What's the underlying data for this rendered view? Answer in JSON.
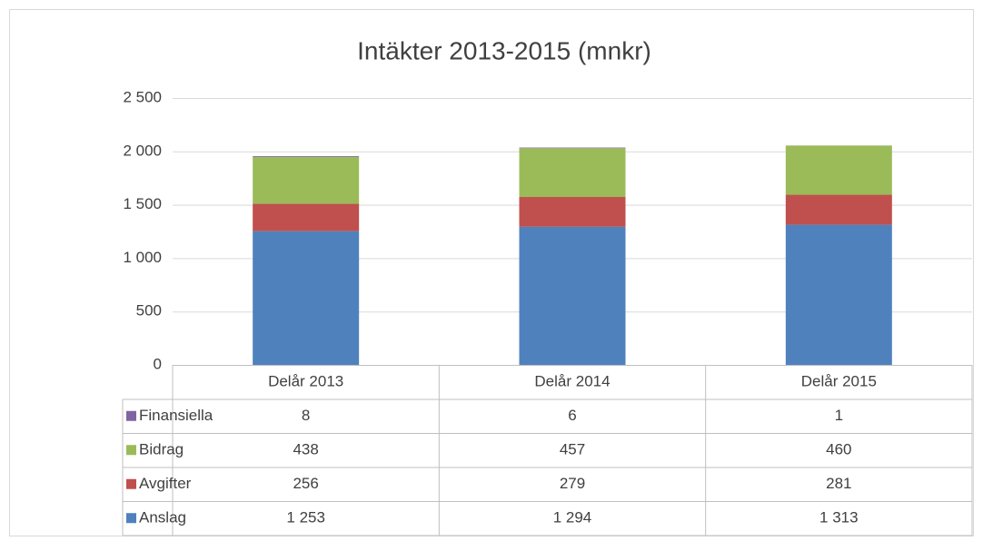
{
  "chart_data": {
    "type": "bar",
    "stacked": true,
    "title": "Intäkter 2013-2015 (mnkr)",
    "categories": [
      "Delår 2013",
      "Delår 2014",
      "Delår 2015"
    ],
    "series": [
      {
        "name": "Anslag",
        "color": "#4f81bd",
        "values": [
          1253,
          1294,
          1313
        ],
        "value_labels": [
          "1 253",
          "1 294",
          "1 313"
        ]
      },
      {
        "name": "Avgifter",
        "color": "#c0504d",
        "values": [
          256,
          279,
          281
        ]
      },
      {
        "name": "Bidrag",
        "color": "#9bbb59",
        "values": [
          438,
          457,
          460
        ]
      },
      {
        "name": "Finansiella",
        "color": "#8064a2",
        "values": [
          8,
          6,
          1
        ]
      }
    ],
    "ylim": [
      0,
      2500
    ],
    "yticks": [
      0,
      500,
      {
        "value": 1000,
        "label": "1 000"
      },
      {
        "value": 1500,
        "label": "1 500"
      },
      {
        "value": 2000,
        "label": "2 000"
      },
      {
        "value": 2500,
        "label": "2 500"
      }
    ],
    "grid": true,
    "data_table": true
  }
}
